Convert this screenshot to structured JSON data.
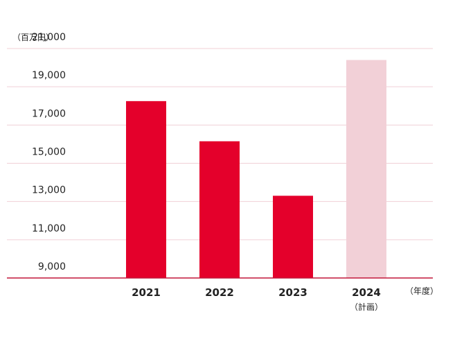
{
  "colors": {
    "actual": "#e4002b",
    "plan": "#f2d0d7",
    "grid": "#f0cfd6",
    "baseline": "#c2173a",
    "text": "#222222"
  },
  "chart_data": {
    "type": "bar",
    "y_unit_label": "（百万円）",
    "x_unit_label": "（年度）",
    "categories": [
      "2021",
      "2022",
      "2023",
      "2024"
    ],
    "category_notes": [
      "",
      "",
      "",
      "（計画）"
    ],
    "values": [
      18250,
      16150,
      13300,
      20400
    ],
    "bar_status": [
      "actual",
      "actual",
      "actual",
      "plan"
    ],
    "ylim": [
      9000,
      21000
    ],
    "yticks": [
      9000,
      11000,
      13000,
      15000,
      17000,
      19000,
      21000
    ],
    "ytick_labels": [
      "9,000",
      "11,000",
      "13,000",
      "15,000",
      "17,000",
      "19,000",
      "21,000"
    ],
    "grid": true
  }
}
